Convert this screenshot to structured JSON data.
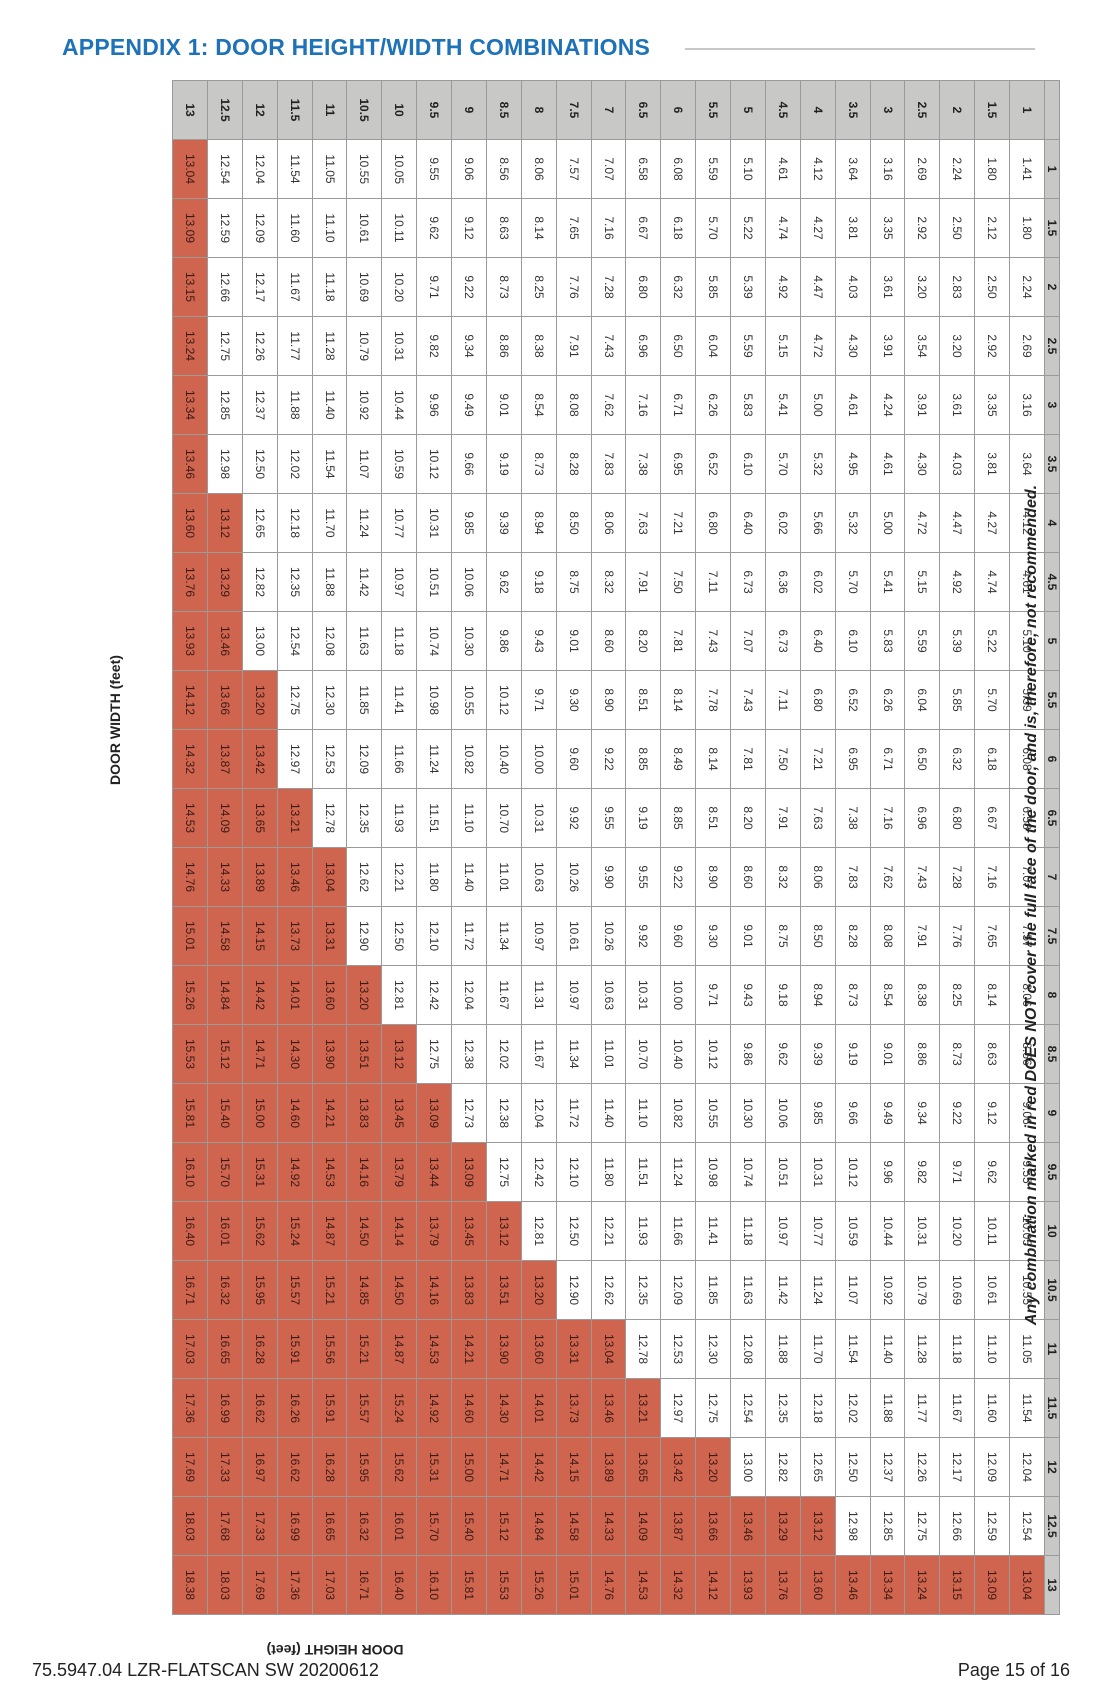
{
  "title": "APPENDIX 1:  DOOR HEIGHT/WIDTH COMBINATIONS",
  "axis_width_label": "DOOR WIDTH (feet)",
  "axis_height_label": "DOOR HEIGHT (feet)",
  "note": "Any combination marked in red DOES NOT cover the full face of the door, and is, therefore, not recommended.",
  "footer_left": "75.5947.04 LZR-FLATSCAN SW 20200612",
  "footer_right": "Page 15 of 16",
  "colors": {
    "title": "#1d72b8",
    "red_cell": "#cf654f",
    "header_bg": "#c8c8c6"
  },
  "table": {
    "widths": [
      "1",
      "1.5",
      "2",
      "2.5",
      "3",
      "3.5",
      "4",
      "4.5",
      "5",
      "5.5",
      "6",
      "6.5",
      "7",
      "7.5",
      "8",
      "8.5",
      "9",
      "9.5",
      "10",
      "10.5",
      "11",
      "11.5",
      "12",
      "12.5",
      "13"
    ],
    "heights": [
      "1",
      "1.5",
      "2",
      "2.5",
      "3",
      "3.5",
      "4",
      "4.5",
      "5",
      "5.5",
      "6",
      "6.5",
      "7",
      "7.5",
      "8",
      "8.5",
      "9",
      "9.5",
      "10",
      "10.5",
      "11",
      "11.5",
      "12",
      "12.5",
      "13"
    ],
    "values": [
      [
        "1.41",
        "1.80",
        "2.24",
        "2.69",
        "3.16",
        "3.64",
        "4.12",
        "4.61",
        "5.10",
        "5.59",
        "6.08",
        "6.58",
        "7.07",
        "7.57",
        "8.06",
        "8.56",
        "9.06",
        "9.55",
        "10.05",
        "10.55",
        "11.05",
        "11.54",
        "12.04",
        "12.54",
        "13.04"
      ],
      [
        "1.80",
        "2.12",
        "2.50",
        "2.92",
        "3.35",
        "3.81",
        "4.27",
        "4.74",
        "5.22",
        "5.70",
        "6.18",
        "6.67",
        "7.16",
        "7.65",
        "8.14",
        "8.63",
        "9.12",
        "9.62",
        "10.11",
        "10.61",
        "11.10",
        "11.60",
        "12.09",
        "12.59",
        "13.09"
      ],
      [
        "2.24",
        "2.50",
        "2.83",
        "3.20",
        "3.61",
        "4.03",
        "4.47",
        "4.92",
        "5.39",
        "5.85",
        "6.32",
        "6.80",
        "7.28",
        "7.76",
        "8.25",
        "8.73",
        "9.22",
        "9.71",
        "10.20",
        "10.69",
        "11.18",
        "11.67",
        "12.17",
        "12.66",
        "13.15"
      ],
      [
        "2.69",
        "2.92",
        "3.20",
        "3.54",
        "3.91",
        "4.30",
        "4.72",
        "5.15",
        "5.59",
        "6.04",
        "6.50",
        "6.96",
        "7.43",
        "7.91",
        "8.38",
        "8.86",
        "9.34",
        "9.82",
        "10.31",
        "10.79",
        "11.28",
        "11.77",
        "12.26",
        "12.75",
        "13.24"
      ],
      [
        "3.16",
        "3.35",
        "3.61",
        "3.91",
        "4.24",
        "4.61",
        "5.00",
        "5.41",
        "5.83",
        "6.26",
        "6.71",
        "7.16",
        "7.62",
        "8.08",
        "8.54",
        "9.01",
        "9.49",
        "9.96",
        "10.44",
        "10.92",
        "11.40",
        "11.88",
        "12.37",
        "12.85",
        "13.34"
      ],
      [
        "3.64",
        "3.81",
        "4.03",
        "4.30",
        "4.61",
        "4.95",
        "5.32",
        "5.70",
        "6.10",
        "6.52",
        "6.95",
        "7.38",
        "7.83",
        "8.28",
        "8.73",
        "9.19",
        "9.66",
        "10.12",
        "10.59",
        "11.07",
        "11.54",
        "12.02",
        "12.50",
        "12.98",
        "13.46"
      ],
      [
        "4.12",
        "4.27",
        "4.47",
        "4.72",
        "5.00",
        "5.32",
        "5.66",
        "6.02",
        "6.40",
        "6.80",
        "7.21",
        "7.63",
        "8.06",
        "8.50",
        "8.94",
        "9.39",
        "9.85",
        "10.31",
        "10.77",
        "11.24",
        "11.70",
        "12.18",
        "12.65",
        "13.12",
        "13.60"
      ],
      [
        "4.61",
        "4.74",
        "4.92",
        "5.15",
        "5.41",
        "5.70",
        "6.02",
        "6.36",
        "6.73",
        "7.11",
        "7.50",
        "7.91",
        "8.32",
        "8.75",
        "9.18",
        "9.62",
        "10.06",
        "10.51",
        "10.97",
        "11.42",
        "11.88",
        "12.35",
        "12.82",
        "13.29",
        "13.76"
      ],
      [
        "5.10",
        "5.22",
        "5.39",
        "5.59",
        "5.83",
        "6.10",
        "6.40",
        "6.73",
        "7.07",
        "7.43",
        "7.81",
        "8.20",
        "8.60",
        "9.01",
        "9.43",
        "9.86",
        "10.30",
        "10.74",
        "11.18",
        "11.63",
        "12.08",
        "12.54",
        "13.00",
        "13.46",
        "13.93"
      ],
      [
        "5.59",
        "5.70",
        "5.85",
        "6.04",
        "6.26",
        "6.52",
        "6.80",
        "7.11",
        "7.43",
        "7.78",
        "8.14",
        "8.51",
        "8.90",
        "9.30",
        "9.71",
        "10.12",
        "10.55",
        "10.98",
        "11.41",
        "11.85",
        "12.30",
        "12.75",
        "13.20",
        "13.66",
        "14.12"
      ],
      [
        "6.08",
        "6.18",
        "6.32",
        "6.50",
        "6.71",
        "6.95",
        "7.21",
        "7.50",
        "7.81",
        "8.14",
        "8.49",
        "8.85",
        "9.22",
        "9.60",
        "10.00",
        "10.40",
        "10.82",
        "11.24",
        "11.66",
        "12.09",
        "12.53",
        "12.97",
        "13.42",
        "13.87",
        "14.32"
      ],
      [
        "6.58",
        "6.67",
        "6.80",
        "6.96",
        "7.16",
        "7.38",
        "7.63",
        "7.91",
        "8.20",
        "8.51",
        "8.85",
        "9.19",
        "9.55",
        "9.92",
        "10.31",
        "10.70",
        "11.10",
        "11.51",
        "11.93",
        "12.35",
        "12.78",
        "13.21",
        "13.65",
        "14.09",
        "14.53"
      ],
      [
        "7.07",
        "7.16",
        "7.28",
        "7.43",
        "7.62",
        "7.83",
        "8.06",
        "8.32",
        "8.60",
        "8.90",
        "9.22",
        "9.55",
        "9.90",
        "10.26",
        "10.63",
        "11.01",
        "11.40",
        "11.80",
        "12.21",
        "12.62",
        "13.04",
        "13.46",
        "13.89",
        "14.33",
        "14.76"
      ],
      [
        "7.57",
        "7.65",
        "7.76",
        "7.91",
        "8.08",
        "8.28",
        "8.50",
        "8.75",
        "9.01",
        "9.30",
        "9.60",
        "9.92",
        "10.26",
        "10.61",
        "10.97",
        "11.34",
        "11.72",
        "12.10",
        "12.50",
        "12.90",
        "13.31",
        "13.73",
        "14.15",
        "14.58",
        "15.01"
      ],
      [
        "8.06",
        "8.14",
        "8.25",
        "8.38",
        "8.54",
        "8.73",
        "8.94",
        "9.18",
        "9.43",
        "9.71",
        "10.00",
        "10.31",
        "10.63",
        "10.97",
        "11.31",
        "11.67",
        "12.04",
        "12.42",
        "12.81",
        "13.20",
        "13.60",
        "14.01",
        "14.42",
        "14.84",
        "15.26"
      ],
      [
        "8.56",
        "8.63",
        "8.73",
        "8.86",
        "9.01",
        "9.19",
        "9.39",
        "9.62",
        "9.86",
        "10.12",
        "10.40",
        "10.70",
        "11.01",
        "11.34",
        "11.67",
        "12.02",
        "12.38",
        "12.75",
        "13.12",
        "13.51",
        "13.90",
        "14.30",
        "14.71",
        "15.12",
        "15.53"
      ],
      [
        "9.06",
        "9.12",
        "9.22",
        "9.34",
        "9.49",
        "9.66",
        "9.85",
        "10.06",
        "10.30",
        "10.55",
        "10.82",
        "11.10",
        "11.40",
        "11.72",
        "12.04",
        "12.38",
        "12.73",
        "13.09",
        "13.45",
        "13.83",
        "14.21",
        "14.60",
        "15.00",
        "15.40",
        "15.81"
      ],
      [
        "9.55",
        "9.62",
        "9.71",
        "9.82",
        "9.96",
        "10.12",
        "10.31",
        "10.51",
        "10.74",
        "10.98",
        "11.24",
        "11.51",
        "11.80",
        "12.10",
        "12.42",
        "12.75",
        "13.09",
        "13.44",
        "13.79",
        "14.16",
        "14.53",
        "14.92",
        "15.31",
        "15.70",
        "16.10"
      ],
      [
        "10.05",
        "10.11",
        "10.20",
        "10.31",
        "10.44",
        "10.59",
        "10.77",
        "10.97",
        "11.18",
        "11.41",
        "11.66",
        "11.93",
        "12.21",
        "12.50",
        "12.81",
        "13.12",
        "13.45",
        "13.79",
        "14.14",
        "14.50",
        "14.87",
        "15.24",
        "15.62",
        "16.01",
        "16.40"
      ],
      [
        "10.55",
        "10.61",
        "10.69",
        "10.79",
        "10.92",
        "11.07",
        "11.24",
        "11.42",
        "11.63",
        "11.85",
        "12.09",
        "12.35",
        "12.62",
        "12.90",
        "13.20",
        "13.51",
        "13.83",
        "14.16",
        "14.50",
        "14.85",
        "15.21",
        "15.57",
        "15.95",
        "16.32",
        "16.71"
      ],
      [
        "11.05",
        "11.10",
        "11.18",
        "11.28",
        "11.40",
        "11.54",
        "11.70",
        "11.88",
        "12.08",
        "12.30",
        "12.53",
        "12.78",
        "13.04",
        "13.31",
        "13.60",
        "13.90",
        "14.21",
        "14.53",
        "14.87",
        "15.21",
        "15.56",
        "15.91",
        "16.28",
        "16.65",
        "17.03"
      ],
      [
        "11.54",
        "11.60",
        "11.67",
        "11.77",
        "11.88",
        "12.02",
        "12.18",
        "12.35",
        "12.54",
        "12.75",
        "12.97",
        "13.21",
        "13.46",
        "13.73",
        "14.01",
        "14.30",
        "14.60",
        "14.92",
        "15.24",
        "15.57",
        "15.91",
        "16.26",
        "16.62",
        "16.99",
        "17.36"
      ],
      [
        "12.04",
        "12.09",
        "12.17",
        "12.26",
        "12.37",
        "12.50",
        "12.65",
        "12.82",
        "13.00",
        "13.20",
        "13.42",
        "13.65",
        "13.89",
        "14.15",
        "14.42",
        "14.71",
        "15.00",
        "15.31",
        "15.62",
        "15.95",
        "16.28",
        "16.62",
        "16.97",
        "17.33",
        "17.69"
      ],
      [
        "12.54",
        "12.59",
        "12.66",
        "12.75",
        "12.85",
        "12.98",
        "13.12",
        "13.29",
        "13.46",
        "13.66",
        "13.87",
        "14.09",
        "14.33",
        "14.58",
        "14.84",
        "15.12",
        "15.40",
        "15.70",
        "16.01",
        "16.32",
        "16.65",
        "16.99",
        "17.33",
        "17.68",
        "18.03"
      ],
      [
        "13.04",
        "13.09",
        "13.15",
        "13.24",
        "13.34",
        "13.46",
        "13.60",
        "13.76",
        "13.93",
        "14.12",
        "14.32",
        "14.53",
        "14.76",
        "15.01",
        "15.26",
        "15.53",
        "15.81",
        "16.10",
        "16.40",
        "16.71",
        "17.03",
        "17.36",
        "17.69",
        "18.03",
        "18.38"
      ]
    ]
  }
}
